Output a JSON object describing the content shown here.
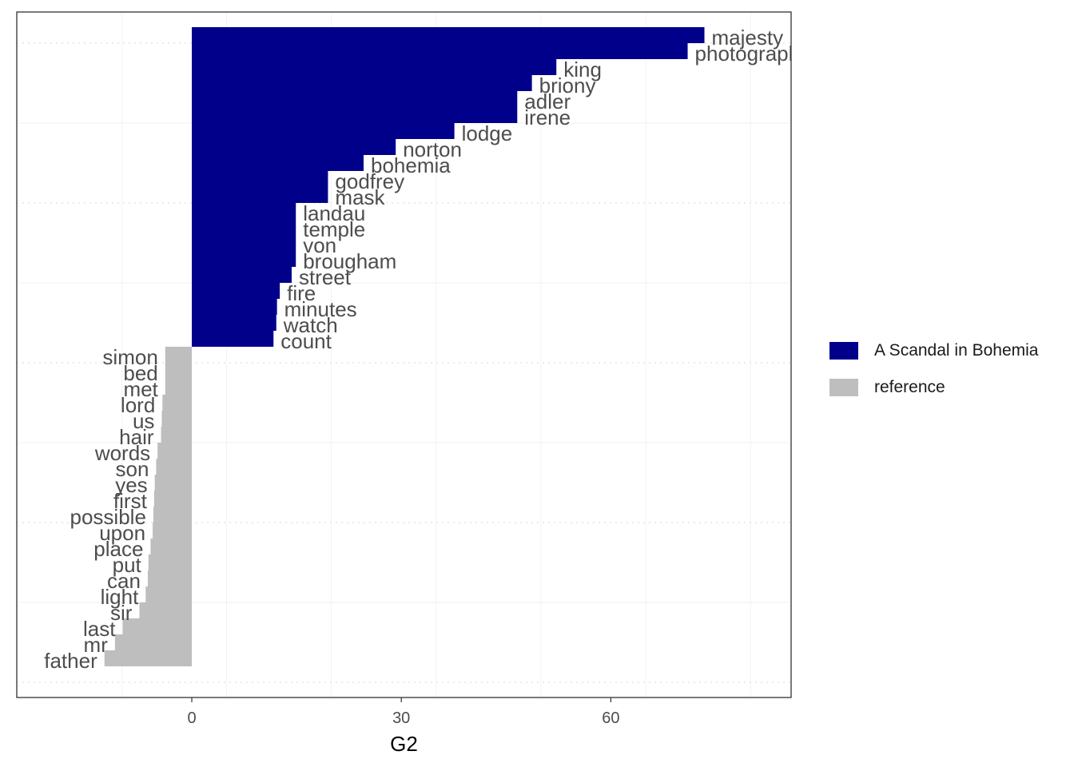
{
  "chart_data": {
    "type": "bar",
    "orientation": "horizontal",
    "xlabel": "G2",
    "ylabel": "",
    "title": "",
    "xlim": [
      -25,
      86
    ],
    "xticks": [
      0,
      30,
      60
    ],
    "grid": true,
    "legend_position": "right",
    "colors": {
      "A Scandal in Bohemia": "#00008B",
      "reference": "#BEBEBE"
    },
    "series": [
      {
        "name": "A Scandal in Bohemia",
        "items": [
          {
            "label": "majesty",
            "value": 73.4
          },
          {
            "label": "photograph",
            "value": 71.0
          },
          {
            "label": "king",
            "value": 52.2
          },
          {
            "label": "briony",
            "value": 48.7
          },
          {
            "label": "adler",
            "value": 46.6
          },
          {
            "label": "irene",
            "value": 46.6
          },
          {
            "label": "lodge",
            "value": 37.6
          },
          {
            "label": "norton",
            "value": 29.2
          },
          {
            "label": "bohemia",
            "value": 24.6
          },
          {
            "label": "godfrey",
            "value": 19.5
          },
          {
            "label": "mask",
            "value": 19.5
          },
          {
            "label": "landau",
            "value": 14.9
          },
          {
            "label": "temple",
            "value": 14.9
          },
          {
            "label": "von",
            "value": 14.9
          },
          {
            "label": "brougham",
            "value": 14.9
          },
          {
            "label": "street",
            "value": 14.3
          },
          {
            "label": "fire",
            "value": 12.6
          },
          {
            "label": "minutes",
            "value": 12.2
          },
          {
            "label": "watch",
            "value": 12.1
          },
          {
            "label": "count",
            "value": 11.7
          }
        ]
      },
      {
        "name": "reference",
        "items": [
          {
            "label": "simon",
            "value": -3.8
          },
          {
            "label": "bed",
            "value": -3.8
          },
          {
            "label": "met",
            "value": -3.8
          },
          {
            "label": "lord",
            "value": -4.2
          },
          {
            "label": "us",
            "value": -4.3
          },
          {
            "label": "hair",
            "value": -4.4
          },
          {
            "label": "words",
            "value": -4.9
          },
          {
            "label": "son",
            "value": -5.1
          },
          {
            "label": "yes",
            "value": -5.3
          },
          {
            "label": "first",
            "value": -5.4
          },
          {
            "label": "possible",
            "value": -5.5
          },
          {
            "label": "upon",
            "value": -5.6
          },
          {
            "label": "place",
            "value": -5.9
          },
          {
            "label": "put",
            "value": -6.2
          },
          {
            "label": "can",
            "value": -6.3
          },
          {
            "label": "light",
            "value": -6.6
          },
          {
            "label": "sir",
            "value": -7.5
          },
          {
            "label": "last",
            "value": -9.9
          },
          {
            "label": "mr",
            "value": -11.0
          },
          {
            "label": "father",
            "value": -12.5
          }
        ]
      }
    ]
  }
}
